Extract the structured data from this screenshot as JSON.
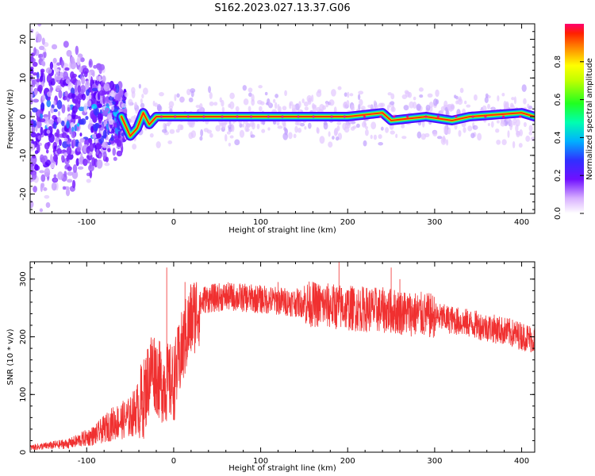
{
  "title": "S162.2023.027.13.37.G06",
  "chart_data": [
    {
      "type": "heatmap",
      "xlabel": "Height of straight line (km)",
      "ylabel": "Frequency (Hz)",
      "xlim": [
        -165,
        415
      ],
      "ylim": [
        -25,
        24
      ],
      "x_ticks": [
        -100,
        0,
        100,
        200,
        300,
        400
      ],
      "y_ticks": [
        -20,
        -10,
        0,
        10,
        20
      ],
      "colorbar": {
        "label": "Normalized spectral amplitude",
        "range": [
          0,
          1
        ],
        "ticks": [
          0.0,
          0.2,
          0.4,
          0.6,
          0.8
        ],
        "tick_labels": [
          "0.0",
          "0.2",
          "0.4",
          "0.6",
          "0.8"
        ],
        "colors": [
          "#ffffff",
          "#e0c0ff",
          "#9a40ff",
          "#5a00ff",
          "#2040ff",
          "#00c8ff",
          "#00ff80",
          "#60ff00",
          "#ffff00",
          "#ffa000",
          "#ff3000",
          "#ff0080"
        ]
      },
      "ridge": [
        {
          "x": -60,
          "y": 0
        },
        {
          "x": -50,
          "y": -5
        },
        {
          "x": -42,
          "y": -3
        },
        {
          "x": -35,
          "y": 1
        },
        {
          "x": -28,
          "y": -2
        },
        {
          "x": -20,
          "y": 0
        },
        {
          "x": 0,
          "y": 0
        },
        {
          "x": 100,
          "y": 0
        },
        {
          "x": 165,
          "y": 0
        },
        {
          "x": 200,
          "y": 0
        },
        {
          "x": 240,
          "y": 1
        },
        {
          "x": 250,
          "y": -1
        },
        {
          "x": 290,
          "y": 0
        },
        {
          "x": 320,
          "y": -1
        },
        {
          "x": 340,
          "y": 0
        },
        {
          "x": 400,
          "y": 1
        },
        {
          "x": 415,
          "y": 0
        }
      ],
      "scatter_region": {
        "x_range": [
          -165,
          -55
        ],
        "y_range": [
          -25,
          24
        ]
      }
    },
    {
      "type": "line",
      "xlabel": "Height of straight line (km)",
      "ylabel": "SNR (10 * v/v)",
      "xlim": [
        -165,
        415
      ],
      "ylim": [
        0,
        330
      ],
      "x_ticks": [
        -100,
        0,
        100,
        200,
        300,
        400
      ],
      "y_ticks": [
        0,
        100,
        200,
        300
      ],
      "color": "#f03030",
      "trend": [
        {
          "x": -165,
          "y": 8
        },
        {
          "x": -120,
          "y": 15
        },
        {
          "x": -90,
          "y": 30
        },
        {
          "x": -70,
          "y": 50
        },
        {
          "x": -50,
          "y": 60
        },
        {
          "x": -35,
          "y": 90
        },
        {
          "x": -25,
          "y": 150
        },
        {
          "x": -15,
          "y": 120
        },
        {
          "x": 0,
          "y": 120
        },
        {
          "x": 10,
          "y": 180
        },
        {
          "x": 20,
          "y": 230
        },
        {
          "x": 35,
          "y": 265
        },
        {
          "x": 60,
          "y": 270
        },
        {
          "x": 100,
          "y": 265
        },
        {
          "x": 150,
          "y": 258
        },
        {
          "x": 200,
          "y": 250
        },
        {
          "x": 250,
          "y": 245
        },
        {
          "x": 300,
          "y": 235
        },
        {
          "x": 350,
          "y": 220
        },
        {
          "x": 380,
          "y": 210
        },
        {
          "x": 415,
          "y": 195
        }
      ],
      "spikes": [
        {
          "x": -8,
          "y": 320
        },
        {
          "x": 13,
          "y": 295
        },
        {
          "x": 190,
          "y": 330
        },
        {
          "x": 250,
          "y": 320
        },
        {
          "x": 260,
          "y": 300
        },
        {
          "x": 120,
          "y": 295
        }
      ]
    }
  ]
}
